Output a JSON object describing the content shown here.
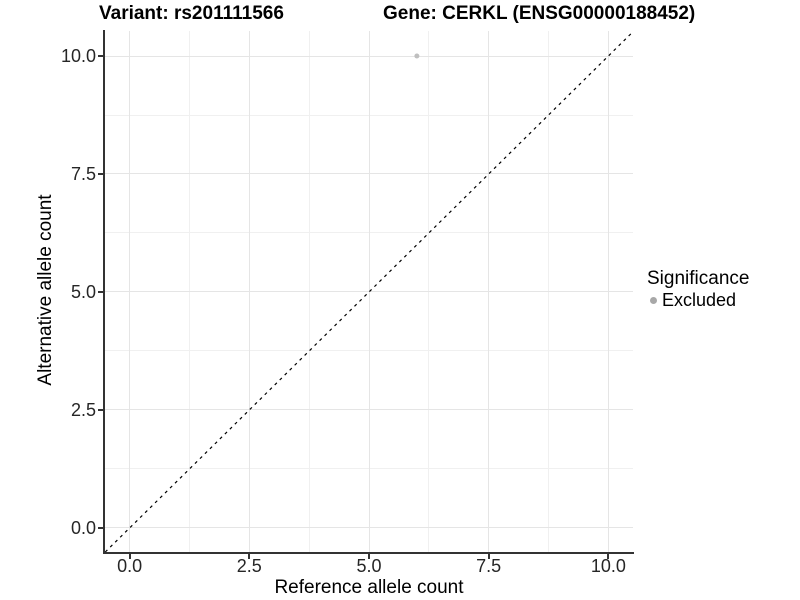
{
  "titles": {
    "left": "Variant: rs201111566",
    "right": "Gene: CERKL (ENSG00000188452)"
  },
  "chart_data": {
    "type": "scatter",
    "title_left": "Variant: rs201111566",
    "title_right": "Gene: CERKL (ENSG00000188452)",
    "xlabel": "Reference allele count",
    "ylabel": "Alternative allele count",
    "xlim": [
      -0.515,
      10.515
    ],
    "ylim": [
      -0.51,
      10.53
    ],
    "x_major_ticks": [
      0,
      2.5,
      5,
      7.5,
      10
    ],
    "y_major_ticks": [
      0,
      2.5,
      5,
      7.5,
      10
    ],
    "x_tick_labels": [
      "0.0",
      "2.5",
      "5.0",
      "7.5",
      "10.0"
    ],
    "y_tick_labels": [
      "0.0",
      "2.5",
      "5.0",
      "7.5",
      "10.0"
    ],
    "x_minor_ticks": [
      1.25,
      3.75,
      6.25,
      8.75
    ],
    "y_minor_ticks": [
      1.25,
      3.75,
      6.25,
      8.75
    ],
    "grid": "major-and-minor",
    "panel_background": "#ffffff",
    "reference_line": {
      "type": "identity",
      "slope": 1,
      "intercept": 0,
      "style": "dashed",
      "color": "#000000"
    },
    "points": [
      {
        "x": 6,
        "y": 10,
        "series": "Excluded",
        "color": "#bfbfbf"
      }
    ],
    "legend": {
      "title": "Significance",
      "position": "right",
      "entries": [
        {
          "label": "Excluded",
          "color": "#a8a8a8",
          "marker": "circle"
        }
      ]
    }
  },
  "colors": {
    "grid_major": "#e5e5e5",
    "grid_minor": "#f0f0f0",
    "axis_line": "#333333",
    "tick_text": "#262626",
    "point": "#bfbfbf",
    "legend_marker": "#a8a8a8"
  }
}
